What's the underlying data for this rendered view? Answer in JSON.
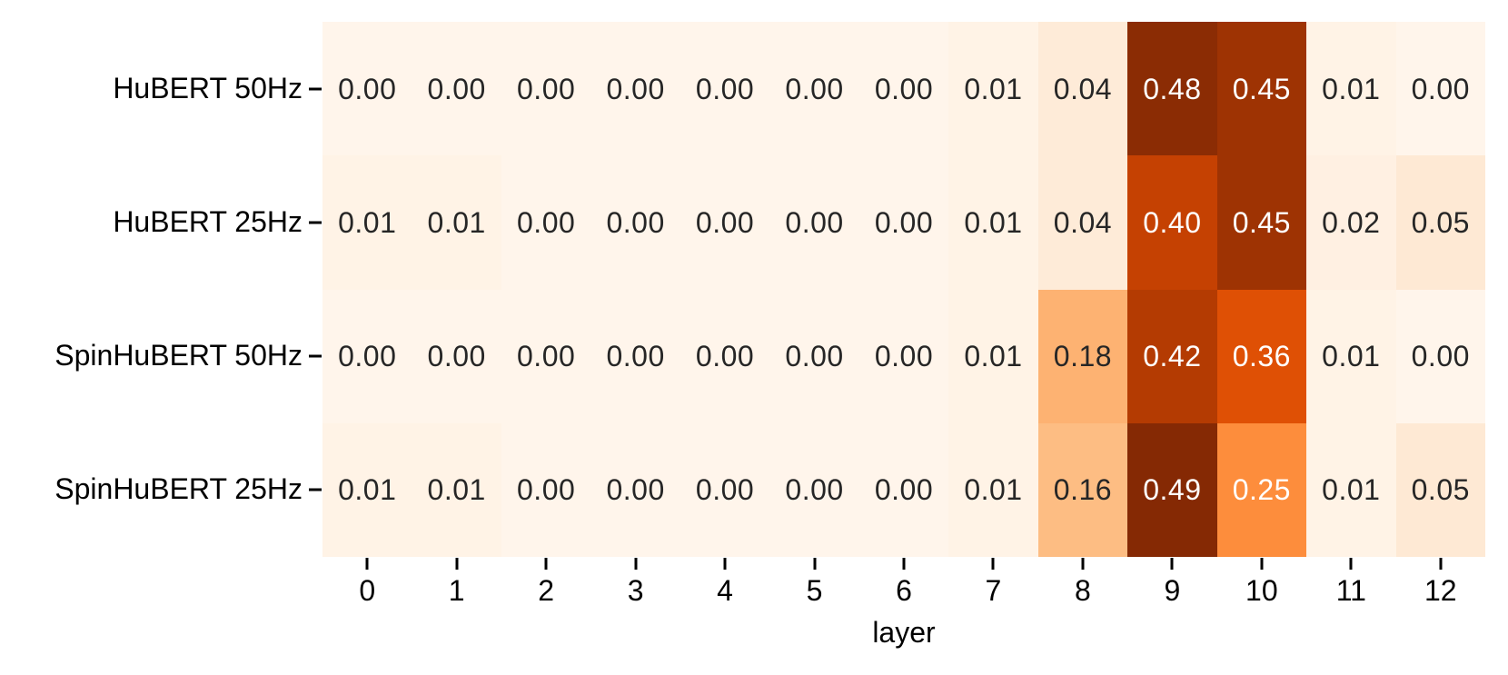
{
  "chart_data": {
    "type": "heatmap",
    "title": "",
    "xlabel": "layer",
    "ylabel": "",
    "x_categories": [
      "0",
      "1",
      "2",
      "3",
      "4",
      "5",
      "6",
      "7",
      "8",
      "9",
      "10",
      "11",
      "12"
    ],
    "row_labels": [
      "HuBERT 50Hz",
      "HuBERT 25Hz",
      "SpinHuBERT 50Hz",
      "SpinHuBERT 25Hz"
    ],
    "values": [
      [
        0.0,
        0.0,
        0.0,
        0.0,
        0.0,
        0.0,
        0.0,
        0.01,
        0.04,
        0.48,
        0.45,
        0.01,
        0.0
      ],
      [
        0.01,
        0.01,
        0.0,
        0.0,
        0.0,
        0.0,
        0.0,
        0.01,
        0.04,
        0.4,
        0.45,
        0.02,
        0.05
      ],
      [
        0.0,
        0.0,
        0.0,
        0.0,
        0.0,
        0.0,
        0.0,
        0.01,
        0.18,
        0.42,
        0.36,
        0.01,
        0.0
      ],
      [
        0.01,
        0.01,
        0.0,
        0.0,
        0.0,
        0.0,
        0.0,
        0.01,
        0.16,
        0.49,
        0.25,
        0.01,
        0.05
      ]
    ],
    "annotation_decimals": 2,
    "colormap": {
      "name": "Oranges",
      "vmin": 0,
      "vmax": 0.5,
      "stops": [
        "#fff5eb",
        "#fee6ce",
        "#fdd0a2",
        "#fdae6b",
        "#fd8d3c",
        "#f16913",
        "#d94801",
        "#a63603",
        "#7f2704"
      ]
    },
    "annotation_colors": {
      "dark": "#262626",
      "light": "#ffffff",
      "light_threshold": 0.2
    },
    "axis_text_color": "#000000",
    "background": "#ffffff",
    "grid": false,
    "legend": "none"
  }
}
